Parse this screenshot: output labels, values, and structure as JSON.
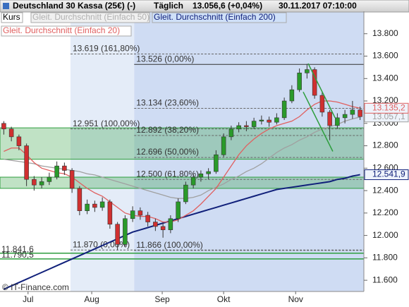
{
  "header": {
    "title": "Deutschland 30 Kassa (25€) (-)",
    "interval": "Täglich",
    "quote": "13.056,6 (+0,04%)",
    "timestamp": "30.11.2017 07:10:00"
  },
  "chart_data": {
    "type": "candlestick",
    "candles_name": "Kurs",
    "up_color": "#2a9a2a",
    "down_color": "#d03030",
    "candles": [
      [
        13.0,
        13.02,
        12.9,
        12.95
      ],
      [
        12.95,
        12.97,
        12.84,
        12.88
      ],
      [
        12.88,
        12.9,
        12.76,
        12.8
      ],
      [
        12.8,
        12.82,
        12.44,
        12.5
      ],
      [
        12.5,
        12.53,
        12.4,
        12.45
      ],
      [
        12.45,
        12.52,
        12.42,
        12.48
      ],
      [
        12.48,
        12.56,
        12.45,
        12.52
      ],
      [
        12.52,
        12.66,
        12.5,
        12.62
      ],
      [
        12.62,
        12.65,
        12.54,
        12.58
      ],
      [
        12.58,
        12.6,
        12.38,
        12.42
      ],
      [
        12.42,
        12.44,
        12.18,
        12.22
      ],
      [
        12.22,
        12.32,
        12.19,
        12.28
      ],
      [
        12.28,
        12.31,
        12.21,
        12.25
      ],
      [
        12.25,
        12.34,
        12.22,
        12.3
      ],
      [
        12.3,
        12.32,
        12.06,
        12.1
      ],
      [
        12.1,
        12.12,
        11.87,
        11.92
      ],
      [
        11.92,
        12.18,
        11.9,
        12.15
      ],
      [
        12.15,
        12.26,
        12.12,
        12.22
      ],
      [
        12.22,
        12.25,
        12.14,
        12.18
      ],
      [
        12.18,
        12.21,
        12.08,
        12.12
      ],
      [
        12.12,
        12.15,
        12.04,
        12.08
      ],
      [
        12.08,
        12.11,
        11.98,
        12.05
      ],
      [
        12.05,
        12.18,
        12.02,
        12.15
      ],
      [
        12.15,
        12.33,
        12.12,
        12.3
      ],
      [
        12.3,
        12.48,
        12.28,
        12.45
      ],
      [
        12.45,
        12.55,
        12.42,
        12.52
      ],
      [
        12.52,
        12.58,
        12.48,
        12.55
      ],
      [
        12.55,
        12.6,
        12.5,
        12.57
      ],
      [
        12.57,
        12.76,
        12.55,
        12.72
      ],
      [
        12.72,
        12.91,
        12.7,
        12.88
      ],
      [
        12.88,
        12.98,
        12.85,
        12.95
      ],
      [
        12.95,
        13.01,
        12.92,
        12.98
      ],
      [
        12.98,
        13.02,
        12.93,
        12.97
      ],
      [
        12.97,
        13.05,
        12.95,
        13.02
      ],
      [
        13.02,
        13.07,
        12.99,
        13.03
      ],
      [
        13.03,
        13.06,
        12.97,
        13.01
      ],
      [
        13.01,
        13.09,
        12.99,
        13.05
      ],
      [
        13.05,
        13.23,
        13.03,
        13.2
      ],
      [
        13.2,
        13.34,
        13.18,
        13.3
      ],
      [
        13.3,
        13.49,
        13.28,
        13.45
      ],
      [
        13.45,
        13.53,
        13.4,
        13.48
      ],
      [
        13.48,
        13.5,
        13.22,
        13.25
      ],
      [
        13.25,
        13.28,
        13.06,
        13.1
      ],
      [
        13.1,
        13.12,
        12.85,
        12.98
      ],
      [
        12.98,
        13.09,
        12.95,
        13.05
      ],
      [
        13.05,
        13.12,
        13.0,
        13.08
      ],
      [
        13.08,
        13.2,
        13.04,
        13.12
      ],
      [
        13.12,
        13.15,
        13.03,
        13.06
      ]
    ],
    "series": [
      {
        "name": "Gleit. Durchschnitt (Einfach 50)",
        "color": "#a0a0a0",
        "last_label": "13.057,1",
        "values": [
          12.68,
          12.67,
          12.66,
          12.65,
          12.64,
          12.62,
          12.61,
          12.6,
          12.59,
          12.58,
          12.57,
          12.55,
          12.54,
          12.52,
          12.5,
          12.48,
          12.46,
          12.44,
          12.42,
          12.4,
          12.38,
          12.36,
          12.34,
          12.33,
          12.33,
          12.34,
          12.36,
          12.4,
          12.43,
          12.46,
          12.5,
          12.53,
          12.57,
          12.6,
          12.64,
          12.69,
          12.74,
          12.78,
          12.81,
          12.85,
          12.88,
          12.92,
          12.95,
          12.97,
          12.99,
          13.02,
          13.04,
          13.0571
        ]
      },
      {
        "name": "Gleit. Durchschnitt (Einfach 200)",
        "color": "#10207a",
        "last_label": "12.541,9",
        "values": [
          11.52,
          11.55,
          11.58,
          11.61,
          11.64,
          11.67,
          11.7,
          11.73,
          11.76,
          11.79,
          11.82,
          11.85,
          11.88,
          11.91,
          11.94,
          11.97,
          12.0,
          12.03,
          12.05,
          12.07,
          12.09,
          12.11,
          12.13,
          12.15,
          12.17,
          12.19,
          12.21,
          12.23,
          12.25,
          12.27,
          12.29,
          12.31,
          12.33,
          12.35,
          12.37,
          12.39,
          12.41,
          12.42,
          12.43,
          12.44,
          12.45,
          12.46,
          12.47,
          12.48,
          12.5,
          12.51,
          12.53,
          12.5419
        ]
      },
      {
        "name": "Gleit. Durchschnitt (Einfach 20)",
        "color": "#e06060",
        "last_label": "13.135,2",
        "values": [
          12.75,
          12.78,
          12.78,
          12.72,
          12.65,
          12.6,
          12.58,
          12.56,
          12.55,
          12.52,
          12.47,
          12.42,
          12.38,
          12.35,
          12.3,
          12.25,
          12.2,
          12.18,
          12.17,
          12.17,
          12.15,
          12.12,
          12.12,
          12.14,
          12.18,
          12.22,
          12.28,
          12.35,
          12.42,
          12.52,
          12.62,
          12.72,
          12.8,
          12.86,
          12.91,
          12.95,
          12.98,
          13.0,
          13.02,
          13.06,
          13.12,
          13.17,
          13.2,
          13.2,
          13.19,
          13.17,
          13.15,
          13.1352
        ]
      }
    ],
    "xlim": [
      -0.5,
      47.5
    ],
    "xticks": [
      {
        "value": 3.2,
        "label": "Jul"
      },
      {
        "value": 11.6,
        "label": "Aug"
      },
      {
        "value": 20.9,
        "label": "Sep"
      },
      {
        "value": 29,
        "label": "Okt"
      },
      {
        "value": 38.5,
        "label": "Nov"
      }
    ],
    "ylim": [
      11.5,
      14.0
    ],
    "yticks": [
      {
        "value": 11.6,
        "label": "11.600"
      },
      {
        "value": 11.8,
        "label": "11.800"
      },
      {
        "value": 12.0,
        "label": "12.000"
      },
      {
        "value": 12.2,
        "label": "12.200"
      },
      {
        "value": 12.4,
        "label": "12.400"
      },
      {
        "value": 12.6,
        "label": "12.600"
      },
      {
        "value": 12.8,
        "label": "12.800"
      },
      {
        "value": 13.0,
        "label": "13.000"
      },
      {
        "value": 13.2,
        "label": "13.200"
      },
      {
        "value": 13.4,
        "label": "13.400"
      },
      {
        "value": 13.6,
        "label": "13.600"
      },
      {
        "value": 13.8,
        "label": "13.800"
      }
    ],
    "fibonacci": [
      {
        "x0": 8.8,
        "levels": [
          {
            "value": 13.619,
            "label": "13.619 (161,80%)"
          },
          {
            "value": 12.951,
            "label": "12.951 (100,00%)"
          },
          {
            "value": 11.87,
            "label": "11.870 (0,00%)"
          }
        ]
      },
      {
        "x0": 17.2,
        "levels": [
          {
            "value": 13.526,
            "label": "13.526 (0,00%)",
            "line": "solid"
          },
          {
            "value": 13.134,
            "label": "13.134 (23,60%)"
          },
          {
            "value": 12.892,
            "label": "12.892 (38,20%)"
          },
          {
            "value": 12.696,
            "label": "12.696 (50,00%)"
          },
          {
            "value": 12.5,
            "label": "12.500 (61,80%)"
          },
          {
            "value": 11.866,
            "label": "11.866 (100,00%)"
          }
        ]
      }
    ],
    "zones": [
      [
        12.68,
        12.96
      ],
      [
        12.42,
        12.52
      ]
    ],
    "zone_color": "#2e9e3e",
    "hlines": [
      {
        "value": 11.8416,
        "label": "11.841,6"
      },
      {
        "value": 11.7905,
        "label": "11.790,5"
      }
    ],
    "trendlines": [
      {
        "x": [
          40.15,
          43.7
        ],
        "y": [
          13.534,
          13.05
        ]
      },
      {
        "x": [
          39.5,
          43.4
        ],
        "y": [
          13.28,
          12.75
        ]
      }
    ],
    "copyright": "© IT-Finance.com"
  }
}
